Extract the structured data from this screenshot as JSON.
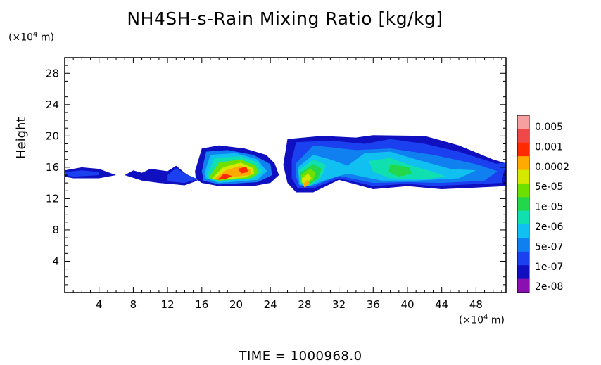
{
  "chart_data": {
    "type": "heatmap",
    "title": "NH4SH-s-Rain Mixing Ratio [kg/kg]",
    "xlabel": "",
    "ylabel": "Height",
    "x_unit": {
      "prefix": "(×10",
      "exp": "4",
      "suffix": " m)"
    },
    "y_unit": {
      "prefix": "(×10",
      "exp": "4",
      "suffix": " m)"
    },
    "xlim": [
      0,
      51.5
    ],
    "ylim": [
      0,
      30
    ],
    "x_ticks": [
      4,
      8,
      12,
      16,
      20,
      24,
      28,
      32,
      36,
      40,
      44,
      48
    ],
    "y_ticks": [
      4,
      8,
      12,
      16,
      20,
      24,
      28
    ],
    "colorbar": {
      "labels": [
        "0.005",
        "0.001",
        "0.0002",
        "5e-05",
        "1e-05",
        "2e-06",
        "5e-07",
        "1e-07",
        "2e-08"
      ],
      "colors": [
        "#f7a0a0",
        "#f04848",
        "#ff2a00",
        "#ffaa00",
        "#d4e800",
        "#6ee000",
        "#22d84a",
        "#10e0b0",
        "#10c0f0",
        "#1080f0",
        "#1a40f0",
        "#1010c0",
        "#8a10b0"
      ]
    },
    "regions": [
      {
        "level": 11,
        "poly": [
          [
            0,
            15.6
          ],
          [
            2,
            16.0
          ],
          [
            4,
            15.8
          ],
          [
            6,
            15.0
          ],
          [
            4,
            14.6
          ],
          [
            1,
            14.6
          ],
          [
            0,
            14.8
          ]
        ]
      },
      {
        "level": 10,
        "poly": [
          [
            0,
            15.4
          ],
          [
            2,
            15.6
          ],
          [
            4,
            15.4
          ],
          [
            4,
            15.0
          ],
          [
            1,
            14.8
          ],
          [
            0,
            15.0
          ]
        ]
      },
      {
        "level": 11,
        "poly": [
          [
            7,
            15.0
          ],
          [
            8,
            15.6
          ],
          [
            9,
            15.3
          ],
          [
            10,
            15.8
          ],
          [
            12,
            15.5
          ],
          [
            13,
            16.2
          ],
          [
            14,
            15.3
          ],
          [
            15.5,
            14.3
          ],
          [
            14,
            13.7
          ],
          [
            11,
            14.0
          ],
          [
            9,
            14.3
          ]
        ]
      },
      {
        "level": 10,
        "poly": [
          [
            12,
            15.0
          ],
          [
            13,
            15.9
          ],
          [
            14,
            15.2
          ],
          [
            15.5,
            14.5
          ],
          [
            14,
            14.0
          ],
          [
            12,
            14.2
          ]
        ]
      },
      {
        "level": 11,
        "poly": [
          [
            15.2,
            15.5
          ],
          [
            16,
            18.4
          ],
          [
            18,
            18.8
          ],
          [
            21,
            18.4
          ],
          [
            23.5,
            17.6
          ],
          [
            24.5,
            16.5
          ],
          [
            25,
            15.0
          ],
          [
            24,
            14.0
          ],
          [
            22,
            13.6
          ],
          [
            18,
            13.6
          ],
          [
            16,
            14.0
          ],
          [
            15.3,
            14.5
          ]
        ]
      },
      {
        "level": 9,
        "poly": [
          [
            16,
            15.5
          ],
          [
            16.5,
            18.0
          ],
          [
            19,
            18.2
          ],
          [
            22,
            17.6
          ],
          [
            24,
            16.4
          ],
          [
            24.2,
            15.0
          ],
          [
            22.5,
            14.1
          ],
          [
            18,
            13.8
          ],
          [
            16.2,
            14.3
          ]
        ]
      },
      {
        "level": 8,
        "poly": [
          [
            16.3,
            15.2
          ],
          [
            17,
            17.6
          ],
          [
            20,
            17.8
          ],
          [
            22.5,
            17.0
          ],
          [
            23.6,
            15.5
          ],
          [
            22.5,
            14.4
          ],
          [
            18,
            14.0
          ],
          [
            16.5,
            14.6
          ]
        ]
      },
      {
        "level": 7,
        "poly": [
          [
            16.6,
            15.0
          ],
          [
            17.5,
            17.2
          ],
          [
            20.5,
            17.4
          ],
          [
            22.5,
            16.6
          ],
          [
            23.1,
            15.4
          ],
          [
            22,
            14.6
          ],
          [
            18,
            14.2
          ],
          [
            16.8,
            14.6
          ]
        ]
      },
      {
        "level": 5,
        "poly": [
          [
            16.9,
            14.8
          ],
          [
            18,
            16.6
          ],
          [
            20.5,
            17.0
          ],
          [
            22.3,
            16.2
          ],
          [
            22.6,
            15.2
          ],
          [
            21.5,
            14.6
          ],
          [
            18,
            14.3
          ],
          [
            17.1,
            14.5
          ]
        ]
      },
      {
        "level": 4,
        "poly": [
          [
            17.2,
            14.6
          ],
          [
            18.5,
            16.0
          ],
          [
            20.5,
            16.6
          ],
          [
            22,
            15.9
          ],
          [
            22.1,
            15.2
          ],
          [
            21,
            14.7
          ],
          [
            18,
            14.4
          ]
        ]
      },
      {
        "level": 3,
        "poly": [
          [
            17.4,
            14.5
          ],
          [
            18.8,
            15.6
          ],
          [
            20.5,
            16.2
          ],
          [
            21.8,
            15.6
          ],
          [
            21.6,
            15.0
          ],
          [
            20,
            14.8
          ],
          [
            18,
            14.5
          ]
        ]
      },
      {
        "level": 2,
        "poly": [
          [
            17.8,
            14.4
          ],
          [
            18.6,
            15.2
          ],
          [
            19.5,
            14.9
          ],
          [
            18.8,
            14.5
          ]
        ]
      },
      {
        "level": 2,
        "poly": [
          [
            20.2,
            15.8
          ],
          [
            21.2,
            16.1
          ],
          [
            21.4,
            15.4
          ],
          [
            20.6,
            15.2
          ]
        ]
      },
      {
        "level": 11,
        "poly": [
          [
            25.5,
            16.3
          ],
          [
            26,
            19.6
          ],
          [
            30,
            20.0
          ],
          [
            34,
            19.8
          ],
          [
            36,
            20.1
          ],
          [
            42,
            20.0
          ],
          [
            46,
            18.8
          ],
          [
            50,
            17.0
          ],
          [
            51.5,
            16.5
          ],
          [
            51.5,
            13.6
          ],
          [
            48,
            13.4
          ],
          [
            44,
            13.2
          ],
          [
            40,
            13.6
          ],
          [
            36,
            13.2
          ],
          [
            32,
            14.4
          ],
          [
            29,
            12.8
          ],
          [
            27,
            12.8
          ],
          [
            26,
            14.0
          ]
        ]
      },
      {
        "level": 10,
        "poly": [
          [
            26.5,
            17.0
          ],
          [
            27,
            19.2
          ],
          [
            31,
            19.4
          ],
          [
            35,
            19.0
          ],
          [
            38,
            19.6
          ],
          [
            42,
            19.0
          ],
          [
            46,
            18.0
          ],
          [
            50,
            16.6
          ],
          [
            51.3,
            15.8
          ],
          [
            51,
            14.0
          ],
          [
            47,
            13.8
          ],
          [
            43,
            13.6
          ],
          [
            40,
            13.9
          ],
          [
            36,
            13.6
          ],
          [
            32,
            14.6
          ],
          [
            29,
            13.3
          ],
          [
            27.2,
            13.3
          ],
          [
            26.5,
            14.6
          ]
        ]
      },
      {
        "level": 9,
        "poly": [
          [
            27,
            16.5
          ],
          [
            29,
            18.8
          ],
          [
            34,
            18.2
          ],
          [
            38,
            18.4
          ],
          [
            43,
            17.6
          ],
          [
            48,
            16.4
          ],
          [
            50.5,
            15.5
          ],
          [
            49,
            14.3
          ],
          [
            44,
            14.0
          ],
          [
            40,
            14.1
          ],
          [
            36,
            14.0
          ],
          [
            32,
            14.9
          ],
          [
            29,
            13.6
          ],
          [
            27.4,
            13.6
          ],
          [
            27,
            14.8
          ]
        ]
      },
      {
        "level": 8,
        "poly": [
          [
            27.2,
            16.0
          ],
          [
            29,
            17.6
          ],
          [
            31,
            17.0
          ],
          [
            33,
            16.2
          ],
          [
            35,
            17.8
          ],
          [
            38,
            18.0
          ],
          [
            41,
            17.0
          ],
          [
            45,
            15.8
          ],
          [
            48,
            15.6
          ],
          [
            46,
            14.6
          ],
          [
            41,
            14.3
          ],
          [
            37,
            14.3
          ],
          [
            33,
            15.2
          ],
          [
            30.5,
            14.4
          ],
          [
            28.5,
            13.6
          ],
          [
            27.4,
            13.8
          ]
        ]
      },
      {
        "level": 7,
        "poly": [
          [
            27.3,
            15.6
          ],
          [
            29,
            17.0
          ],
          [
            30.5,
            16.3
          ],
          [
            30,
            14.8
          ],
          [
            28.6,
            13.6
          ],
          [
            27.5,
            13.9
          ]
        ]
      },
      {
        "level": 7,
        "poly": [
          [
            35.5,
            16.8
          ],
          [
            38,
            17.2
          ],
          [
            40.5,
            16.2
          ],
          [
            43,
            15.4
          ],
          [
            44.5,
            14.8
          ],
          [
            42,
            14.5
          ],
          [
            38,
            14.6
          ],
          [
            36,
            15.4
          ]
        ]
      },
      {
        "level": 6,
        "poly": [
          [
            27.5,
            15.3
          ],
          [
            29,
            16.4
          ],
          [
            30,
            15.8
          ],
          [
            29.6,
            14.6
          ],
          [
            28.5,
            13.8
          ],
          [
            27.6,
            14.0
          ]
        ]
      },
      {
        "level": 6,
        "poly": [
          [
            38,
            16.4
          ],
          [
            40.2,
            16.0
          ],
          [
            40.5,
            15.2
          ],
          [
            39,
            14.8
          ],
          [
            37.8,
            15.4
          ]
        ]
      },
      {
        "level": 5,
        "poly": [
          [
            27.6,
            15.0
          ],
          [
            28.6,
            15.9
          ],
          [
            29.3,
            15.3
          ],
          [
            29,
            14.4
          ],
          [
            28.2,
            13.8
          ],
          [
            27.6,
            14.1
          ]
        ]
      },
      {
        "level": 4,
        "poly": [
          [
            27.7,
            14.6
          ],
          [
            28.4,
            15.2
          ],
          [
            28.8,
            14.6
          ],
          [
            28.2,
            13.9
          ],
          [
            27.7,
            14.0
          ]
        ]
      },
      {
        "level": 3,
        "poly": [
          [
            27.8,
            13.8
          ],
          [
            28.3,
            14.4
          ],
          [
            28.6,
            13.9
          ],
          [
            28.0,
            13.4
          ]
        ]
      },
      {
        "level": 10,
        "poly": [
          [
            44,
            16.6
          ],
          [
            46,
            16.9
          ],
          [
            49,
            16.3
          ],
          [
            51.5,
            16.6
          ],
          [
            51.5,
            15.6
          ],
          [
            49,
            15.6
          ],
          [
            45,
            15.9
          ]
        ]
      }
    ]
  },
  "footer": "TIME = 1000968.0"
}
